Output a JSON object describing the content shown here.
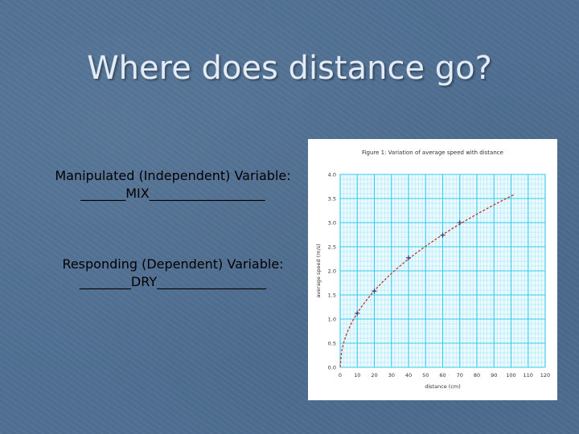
{
  "slide": {
    "title": "Where does distance go?",
    "manipulated_label": "Manipulated (Independent) Variable:",
    "manipulated_answer": "_______MIX__________________",
    "responding_label": "Responding (Dependent) Variable:",
    "responding_answer": "________DRY_________________"
  },
  "chart_data": {
    "type": "scatter",
    "title": "Figure 1: Variation of average speed with distance",
    "xlabel": "distance (cm)",
    "ylabel": "average speed (m/s)",
    "xlim": [
      0,
      120
    ],
    "ylim": [
      0,
      4.0
    ],
    "x_ticks": [
      "0",
      "10",
      "20",
      "30",
      "40",
      "50",
      "60",
      "70",
      "80",
      "90",
      "100",
      "110",
      "120"
    ],
    "y_ticks": [
      "0.0",
      "0.5",
      "1.0",
      "1.5",
      "2.0",
      "2.5",
      "3.0",
      "3.5",
      "4.0"
    ],
    "grid": true,
    "series": [
      {
        "points": [
          {
            "x": 10,
            "y": 1.12
          },
          {
            "x": 20,
            "y": 1.58
          },
          {
            "x": 40,
            "y": 2.27
          },
          {
            "x": 60,
            "y": 2.74
          },
          {
            "x": 70,
            "y": 3.0
          }
        ],
        "fit_curve": "y = 0.355 * sqrt(x)",
        "fit_range": [
          0,
          102
        ]
      }
    ],
    "colors": {
      "grid": "#36c9ee",
      "curve": "#c0392b",
      "markers": "#2c3e7a"
    }
  }
}
